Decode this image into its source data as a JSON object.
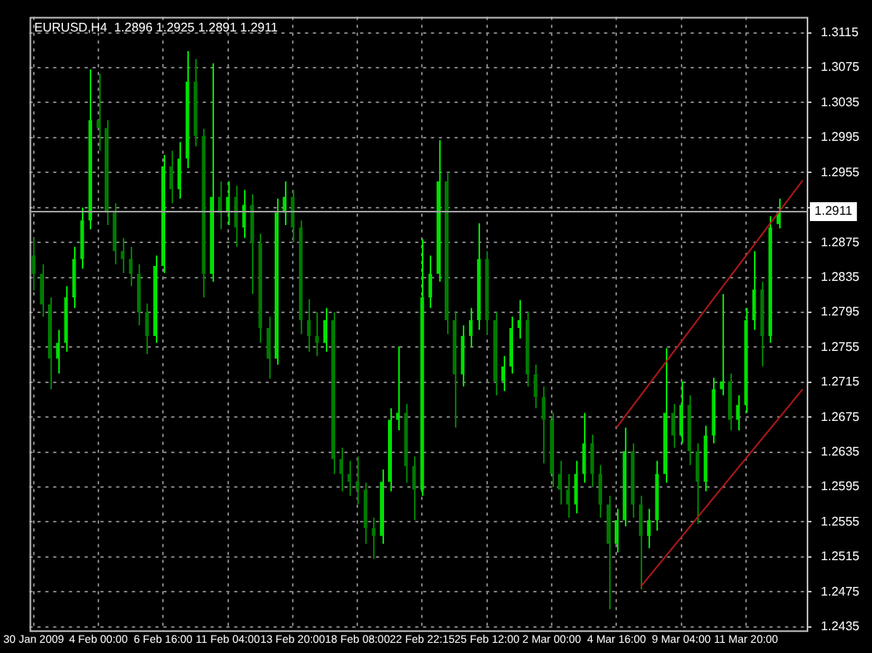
{
  "chart_data": {
    "type": "candlestick",
    "title": "EURUSD,H4  1.2896 1.2925 1.2891 1.2911",
    "categories": [
      "30 Jan 2009",
      null,
      null,
      null,
      null,
      null,
      null,
      null,
      "4 Feb 00:00",
      null,
      null,
      null,
      null,
      null,
      null,
      null,
      "6 Feb 16:00",
      null,
      null,
      null,
      null,
      null,
      null,
      null,
      "11 Feb 04:00",
      null,
      null,
      null,
      null,
      null,
      null,
      null,
      "13 Feb 20:00",
      null,
      null,
      null,
      null,
      null,
      null,
      null,
      "18 Feb 08:00",
      null,
      null,
      null,
      null,
      null,
      null,
      null,
      "22 Feb 22:15",
      null,
      null,
      null,
      null,
      null,
      null,
      null,
      "25 Feb 12:00",
      null,
      null,
      null,
      null,
      null,
      null,
      null,
      "2 Mar 00:00",
      null,
      null,
      null,
      null,
      null,
      null,
      null,
      "4 Mar 16:00",
      null,
      null,
      null,
      null,
      null,
      null,
      null,
      "9 Mar 04:00",
      null,
      null,
      null,
      null,
      null,
      null,
      null,
      "11 Mar 20:00",
      null,
      null,
      null,
      null,
      null,
      null,
      null
    ],
    "series": [
      {
        "type": "candlestick",
        "colors": [
          "#007b00",
          "#007b00",
          "#007b00",
          "#00e000",
          "#00e000",
          "#00e000",
          "#00e000",
          "#00e000",
          "#007b00",
          "#007b00",
          "#007b00",
          "#007b00",
          "#007b00",
          "#007b00",
          "#007b00",
          "#00e000",
          "#00e000",
          "#007b00",
          "#00e000",
          "#00e000",
          "#007b00",
          "#007b00",
          "#00e000",
          "#007b00",
          "#00e000",
          "#007b00",
          "#00e000",
          "#007b00",
          "#007b00",
          "#007b00",
          "#00e000",
          "#00e000",
          "#007b00",
          "#007b00",
          "#007b00",
          "#007b00",
          "#00e000",
          "#007b00",
          "#007b00",
          "#007b00",
          "#007b00",
          "#007b00",
          "#007b00",
          "#00e000",
          "#00e000",
          "#00e000",
          "#007b00",
          "#007b00",
          "#00e000",
          "#00e000",
          "#00e000",
          "#007b00",
          "#007b00",
          "#00e000",
          "#00e000",
          "#00e000",
          "#007b00",
          "#007b00",
          "#00e000",
          "#00e000",
          "#00e000",
          "#007b00",
          "#007b00",
          "#007b00",
          "#007b00",
          "#007b00",
          "#007b00",
          "#00e000",
          "#00e000",
          "#007b00",
          "#007b00",
          "#007b00",
          "#00e000",
          "#00e000",
          "#007b00",
          "#007b00",
          "#00e000",
          "#00e000",
          "#00e000",
          "#007b00",
          "#00e000",
          "#007b00",
          "#007b00",
          "#00e000",
          "#00e000",
          "#00e000",
          "#007b00",
          "#00e000",
          "#00e000",
          "#00e000",
          "#007b00",
          "#00e000",
          "#00e000",
          null,
          null,
          null
        ],
        "ohlc": [
          [
            1.286,
            1.288,
            1.282,
            1.2839
          ],
          [
            1.2839,
            1.285,
            1.279,
            1.2804
          ],
          [
            1.2804,
            1.2812,
            1.2707,
            1.2742
          ],
          [
            1.2742,
            1.2775,
            1.2725,
            1.276
          ],
          [
            1.276,
            1.2825,
            1.275,
            1.2812
          ],
          [
            1.2812,
            1.287,
            1.28,
            1.2856
          ],
          [
            1.2856,
            1.2915,
            1.2845,
            1.29
          ],
          [
            1.29,
            1.3073,
            1.289,
            1.3015
          ],
          [
            1.3015,
            1.3068,
            1.298,
            1.3006
          ],
          [
            1.3006,
            1.3015,
            1.2895,
            1.2909
          ],
          [
            1.2909,
            1.292,
            1.285,
            1.2865
          ],
          [
            1.2865,
            1.288,
            1.284,
            1.2856
          ],
          [
            1.2856,
            1.287,
            1.2825,
            1.2839
          ],
          [
            1.2839,
            1.285,
            1.278,
            1.2795
          ],
          [
            1.2795,
            1.2805,
            1.2747,
            1.2768
          ],
          [
            1.2768,
            1.286,
            1.276,
            1.2848
          ],
          [
            1.2848,
            1.2975,
            1.284,
            1.2962
          ],
          [
            1.2962,
            1.298,
            1.292,
            1.2936
          ],
          [
            1.2936,
            1.299,
            1.2925,
            1.2971
          ],
          [
            1.2971,
            1.3094,
            1.296,
            1.3059
          ],
          [
            1.3059,
            1.3085,
            1.2985,
            1.2997
          ],
          [
            1.2997,
            1.3005,
            1.2812,
            1.2839
          ],
          [
            1.2839,
            1.308,
            1.283,
            1.2927
          ],
          [
            1.2927,
            1.2945,
            1.289,
            1.2909
          ],
          [
            1.2909,
            1.2945,
            1.2895,
            1.2927
          ],
          [
            1.2927,
            1.294,
            1.287,
            1.2892
          ],
          [
            1.2892,
            1.2935,
            1.288,
            1.2918
          ],
          [
            1.2918,
            1.293,
            1.2816,
            1.2874
          ],
          [
            1.2874,
            1.2885,
            1.276,
            1.2777
          ],
          [
            1.2777,
            1.279,
            1.2719,
            1.2742
          ],
          [
            1.2742,
            1.2925,
            1.2735,
            1.2909
          ],
          [
            1.2909,
            1.2945,
            1.2895,
            1.2927
          ],
          [
            1.2927,
            1.2935,
            1.2875,
            1.2892
          ],
          [
            1.2892,
            1.29,
            1.277,
            1.2786
          ],
          [
            1.2786,
            1.281,
            1.275,
            1.2768
          ],
          [
            1.2768,
            1.2795,
            1.2745,
            1.276
          ],
          [
            1.276,
            1.28,
            1.275,
            1.2786
          ],
          [
            1.2786,
            1.2795,
            1.261,
            1.2627
          ],
          [
            1.2627,
            1.264,
            1.259,
            1.261
          ],
          [
            1.261,
            1.2625,
            1.2585,
            1.2601
          ],
          [
            1.2601,
            1.263,
            1.2575,
            1.2592
          ],
          [
            1.2592,
            1.26,
            1.253,
            1.2548
          ],
          [
            1.2548,
            1.256,
            1.2513,
            1.2539
          ],
          [
            1.2539,
            1.2615,
            1.253,
            1.2601
          ],
          [
            1.2601,
            1.2685,
            1.259,
            1.2672
          ],
          [
            1.2672,
            1.2756,
            1.266,
            1.268
          ],
          [
            1.268,
            1.269,
            1.26,
            1.2619
          ],
          [
            1.2619,
            1.263,
            1.2557,
            1.2592
          ],
          [
            1.2592,
            1.2879,
            1.2585,
            1.2812
          ],
          [
            1.2812,
            1.286,
            1.28,
            1.2839
          ],
          [
            1.2839,
            1.2992,
            1.283,
            1.2945
          ],
          [
            1.2945,
            1.2955,
            1.277,
            1.2786
          ],
          [
            1.2786,
            1.2795,
            1.2663,
            1.2724
          ],
          [
            1.2724,
            1.278,
            1.271,
            1.2768
          ],
          [
            1.2768,
            1.28,
            1.2755,
            1.2786
          ],
          [
            1.2786,
            1.2897,
            1.2775,
            1.2856
          ],
          [
            1.2856,
            1.2865,
            1.277,
            1.2786
          ],
          [
            1.2786,
            1.2795,
            1.27,
            1.2716
          ],
          [
            1.2716,
            1.2745,
            1.2705,
            1.2733
          ],
          [
            1.2733,
            1.279,
            1.2725,
            1.2777
          ],
          [
            1.2777,
            1.2809,
            1.2765,
            1.2786
          ],
          [
            1.2786,
            1.2795,
            1.271,
            1.2724
          ],
          [
            1.2724,
            1.2735,
            1.2685,
            1.2698
          ],
          [
            1.2698,
            1.271,
            1.2622,
            1.2672
          ],
          [
            1.2672,
            1.268,
            1.2595,
            1.261
          ],
          [
            1.261,
            1.2625,
            1.2575,
            1.2592
          ],
          [
            1.2592,
            1.261,
            1.256,
            1.2575
          ],
          [
            1.2575,
            1.2625,
            1.2565,
            1.261
          ],
          [
            1.261,
            1.268,
            1.26,
            1.2645
          ],
          [
            1.2645,
            1.2655,
            1.2595,
            1.261
          ],
          [
            1.261,
            1.262,
            1.256,
            1.2575
          ],
          [
            1.2575,
            1.2585,
            1.2455,
            1.253
          ],
          [
            1.253,
            1.257,
            1.252,
            1.2557
          ],
          [
            1.2557,
            1.2663,
            1.255,
            1.2636
          ],
          [
            1.2636,
            1.2645,
            1.256,
            1.2575
          ],
          [
            1.2575,
            1.2585,
            1.2478,
            1.2539
          ],
          [
            1.2539,
            1.257,
            1.2525,
            1.2557
          ],
          [
            1.2557,
            1.2625,
            1.2545,
            1.261
          ],
          [
            1.261,
            1.2754,
            1.26,
            1.268
          ],
          [
            1.268,
            1.269,
            1.264,
            1.2654
          ],
          [
            1.2654,
            1.2716,
            1.2645,
            1.2689
          ],
          [
            1.2689,
            1.27,
            1.262,
            1.2636
          ],
          [
            1.2636,
            1.2645,
            1.2553,
            1.2601
          ],
          [
            1.2601,
            1.2665,
            1.259,
            1.2654
          ],
          [
            1.2654,
            1.272,
            1.2645,
            1.2707
          ],
          [
            1.2707,
            1.2816,
            1.27,
            1.2716
          ],
          [
            1.2716,
            1.2725,
            1.266,
            1.2672
          ],
          [
            1.2672,
            1.27,
            1.266,
            1.2689
          ],
          [
            1.2689,
            1.28,
            1.268,
            1.2786
          ],
          [
            1.2786,
            1.2865,
            1.2775,
            1.2821
          ],
          [
            1.2821,
            1.283,
            1.2733,
            1.2768
          ],
          [
            1.2768,
            1.2905,
            1.276,
            1.2892
          ],
          [
            1.2896,
            1.2925,
            1.2891,
            1.2911
          ],
          null,
          null,
          null
        ]
      },
      {
        "type": "line",
        "color": "#b01818",
        "values": [
          null,
          null,
          null,
          null,
          null,
          null,
          null,
          null,
          null,
          null,
          null,
          null,
          null,
          null,
          null,
          null,
          null,
          null,
          null,
          null,
          null,
          null,
          null,
          null,
          null,
          null,
          null,
          null,
          null,
          null,
          null,
          null,
          null,
          null,
          null,
          null,
          null,
          null,
          null,
          null,
          null,
          null,
          null,
          null,
          null,
          null,
          null,
          null,
          null,
          null,
          null,
          null,
          null,
          null,
          null,
          null,
          null,
          null,
          null,
          null,
          null,
          null,
          null,
          null,
          null,
          null,
          null,
          null,
          null,
          null,
          null,
          null,
          1.2663,
          null,
          null,
          null,
          null,
          null,
          null,
          null,
          null,
          null,
          null,
          null,
          null,
          null,
          null,
          null,
          null,
          null,
          null,
          null,
          null,
          null,
          null,
          1.2946
        ]
      },
      {
        "type": "line",
        "color": "#b01818",
        "values": [
          null,
          null,
          null,
          null,
          null,
          null,
          null,
          null,
          null,
          null,
          null,
          null,
          null,
          null,
          null,
          null,
          null,
          null,
          null,
          null,
          null,
          null,
          null,
          null,
          null,
          null,
          null,
          null,
          null,
          null,
          null,
          null,
          null,
          null,
          null,
          null,
          null,
          null,
          null,
          null,
          null,
          null,
          null,
          null,
          null,
          null,
          null,
          null,
          null,
          null,
          null,
          null,
          null,
          null,
          null,
          null,
          null,
          null,
          null,
          null,
          null,
          null,
          null,
          null,
          null,
          null,
          null,
          null,
          null,
          null,
          null,
          null,
          null,
          null,
          null,
          1.2481,
          null,
          null,
          null,
          null,
          null,
          null,
          null,
          null,
          null,
          null,
          null,
          null,
          null,
          null,
          null,
          null,
          null,
          null,
          null,
          1.2707
        ]
      }
    ],
    "ylim": [
      1.2431,
      1.3133
    ],
    "yticks": [
      1.2435,
      1.2475,
      1.2515,
      1.2555,
      1.2595,
      1.2635,
      1.2675,
      1.2715,
      1.2755,
      1.2795,
      1.2835,
      1.2875,
      {
        "value": 1.2915,
        "label": null
      },
      1.2955,
      1.2995,
      1.3035,
      1.3075,
      1.3115
    ],
    "grid": true,
    "legend": false,
    "ref_lines": [
      {
        "axis": "y",
        "value": 1.2911,
        "label": "1.2911",
        "color": "#a0a0a0"
      }
    ]
  }
}
